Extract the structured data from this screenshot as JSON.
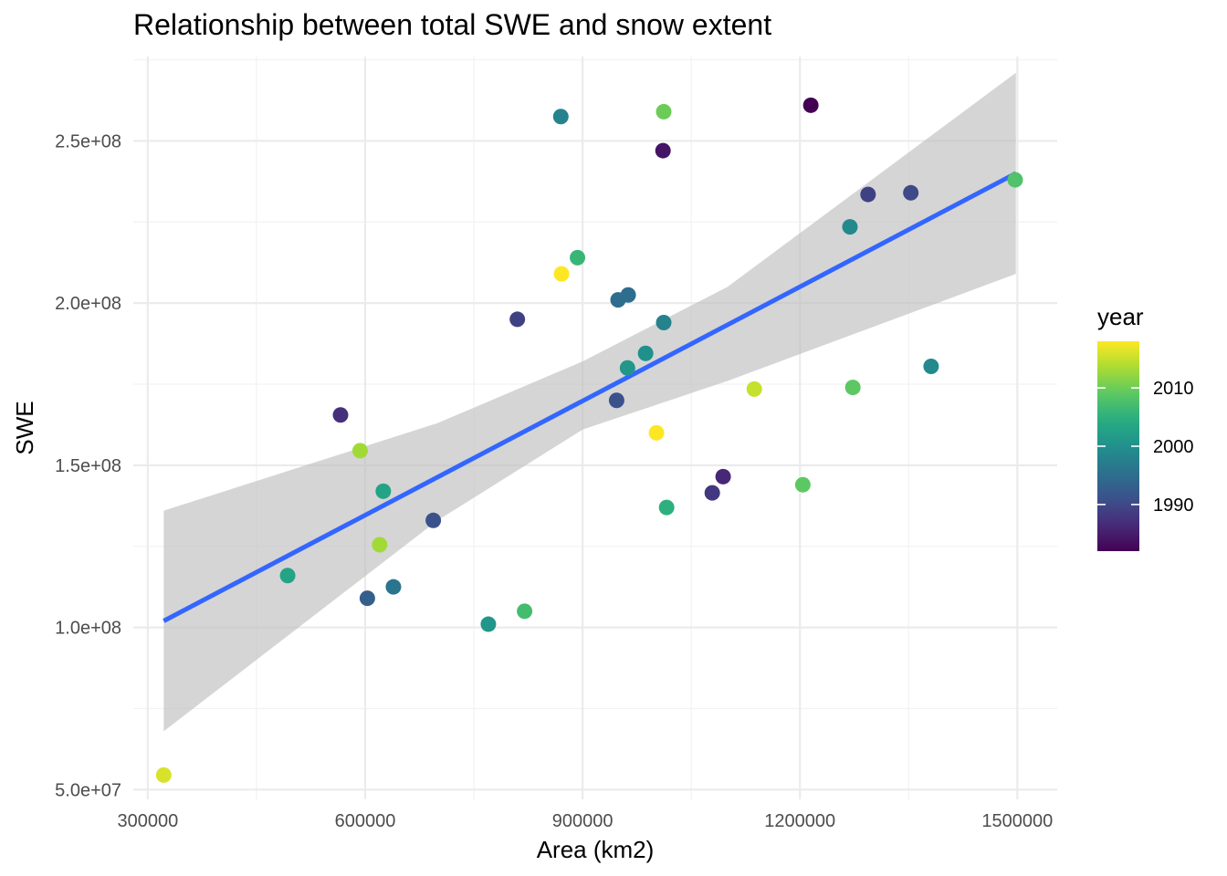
{
  "chart_data": {
    "type": "scatter",
    "title": "Relationship between total SWE and snow extent",
    "xlabel": "Area (km2)",
    "ylabel": "SWE",
    "xlim": [
      280000,
      1555000
    ],
    "ylim": [
      47000000,
      276000000
    ],
    "x_ticks": [
      300000,
      600000,
      900000,
      1200000,
      1500000
    ],
    "x_tick_labels": [
      "300000",
      "600000",
      "900000",
      "1200000",
      "1500000"
    ],
    "y_ticks": [
      50000000,
      100000000,
      150000000,
      200000000,
      250000000
    ],
    "y_tick_labels": [
      "5.0e+07",
      "1.0e+08",
      "1.5e+08",
      "2.0e+08",
      "2.5e+08"
    ],
    "grid": true,
    "color_scale": "viridis",
    "color_variable": "year",
    "color_range": [
      1982,
      2018
    ],
    "legend_title": "year",
    "legend_position": "right",
    "legend_ticks": [
      1990,
      2000,
      2010
    ],
    "legend_tick_labels": [
      "1990",
      "2000",
      "2010"
    ],
    "trend": {
      "method": "lm",
      "color": "#3366ff",
      "ribbon_color": "#bebebe",
      "x": [
        322000,
        1498000
      ],
      "y": [
        102000000,
        240000000
      ],
      "ribbon_x": [
        322000,
        700000,
        900000,
        1100000,
        1498000
      ],
      "ribbon_upper": [
        136000000,
        163000000,
        182000000,
        205000000,
        271000000
      ],
      "ribbon_lower": [
        68000000,
        133000000,
        161000000,
        176000000,
        209000000
      ]
    },
    "points": [
      {
        "x": 322000,
        "y": 54500000,
        "year": 2016
      },
      {
        "x": 493000,
        "y": 116000000,
        "year": 2003
      },
      {
        "x": 566000,
        "y": 165500000,
        "year": 1987
      },
      {
        "x": 593000,
        "y": 154500000,
        "year": 2013
      },
      {
        "x": 603000,
        "y": 109000000,
        "year": 1993
      },
      {
        "x": 620000,
        "y": 125500000,
        "year": 2013
      },
      {
        "x": 625000,
        "y": 142000000,
        "year": 2003
      },
      {
        "x": 639000,
        "y": 112500000,
        "year": 1996
      },
      {
        "x": 694000,
        "y": 133000000,
        "year": 1991
      },
      {
        "x": 770000,
        "y": 101000000,
        "year": 2001
      },
      {
        "x": 810000,
        "y": 195000000,
        "year": 1989
      },
      {
        "x": 820000,
        "y": 105000000,
        "year": 2007
      },
      {
        "x": 870000,
        "y": 257500000,
        "year": 1998
      },
      {
        "x": 871000,
        "y": 209000000,
        "year": 2018
      },
      {
        "x": 893000,
        "y": 214000000,
        "year": 2006
      },
      {
        "x": 947000,
        "y": 170000000,
        "year": 1991
      },
      {
        "x": 949000,
        "y": 201000000,
        "year": 1995
      },
      {
        "x": 962000,
        "y": 180000000,
        "year": 2001
      },
      {
        "x": 963000,
        "y": 202500000,
        "year": 1995
      },
      {
        "x": 987000,
        "y": 184500000,
        "year": 2000
      },
      {
        "x": 1002000,
        "y": 160000000,
        "year": 2018
      },
      {
        "x": 1011000,
        "y": 247000000,
        "year": 1984
      },
      {
        "x": 1012000,
        "y": 194000000,
        "year": 1998
      },
      {
        "x": 1012000,
        "y": 259000000,
        "year": 2010
      },
      {
        "x": 1016000,
        "y": 137000000,
        "year": 2005
      },
      {
        "x": 1079000,
        "y": 141500000,
        "year": 1988
      },
      {
        "x": 1094000,
        "y": 146500000,
        "year": 1986
      },
      {
        "x": 1137000,
        "y": 173500000,
        "year": 2015
      },
      {
        "x": 1204000,
        "y": 144000000,
        "year": 2009
      },
      {
        "x": 1215000,
        "y": 261000000,
        "year": 1982
      },
      {
        "x": 1269000,
        "y": 223500000,
        "year": 1999
      },
      {
        "x": 1273000,
        "y": 174000000,
        "year": 2009
      },
      {
        "x": 1294000,
        "y": 233500000,
        "year": 1989
      },
      {
        "x": 1353000,
        "y": 234000000,
        "year": 1990
      },
      {
        "x": 1381000,
        "y": 180500000,
        "year": 1999
      },
      {
        "x": 1497000,
        "y": 238000000,
        "year": 2008
      }
    ]
  }
}
